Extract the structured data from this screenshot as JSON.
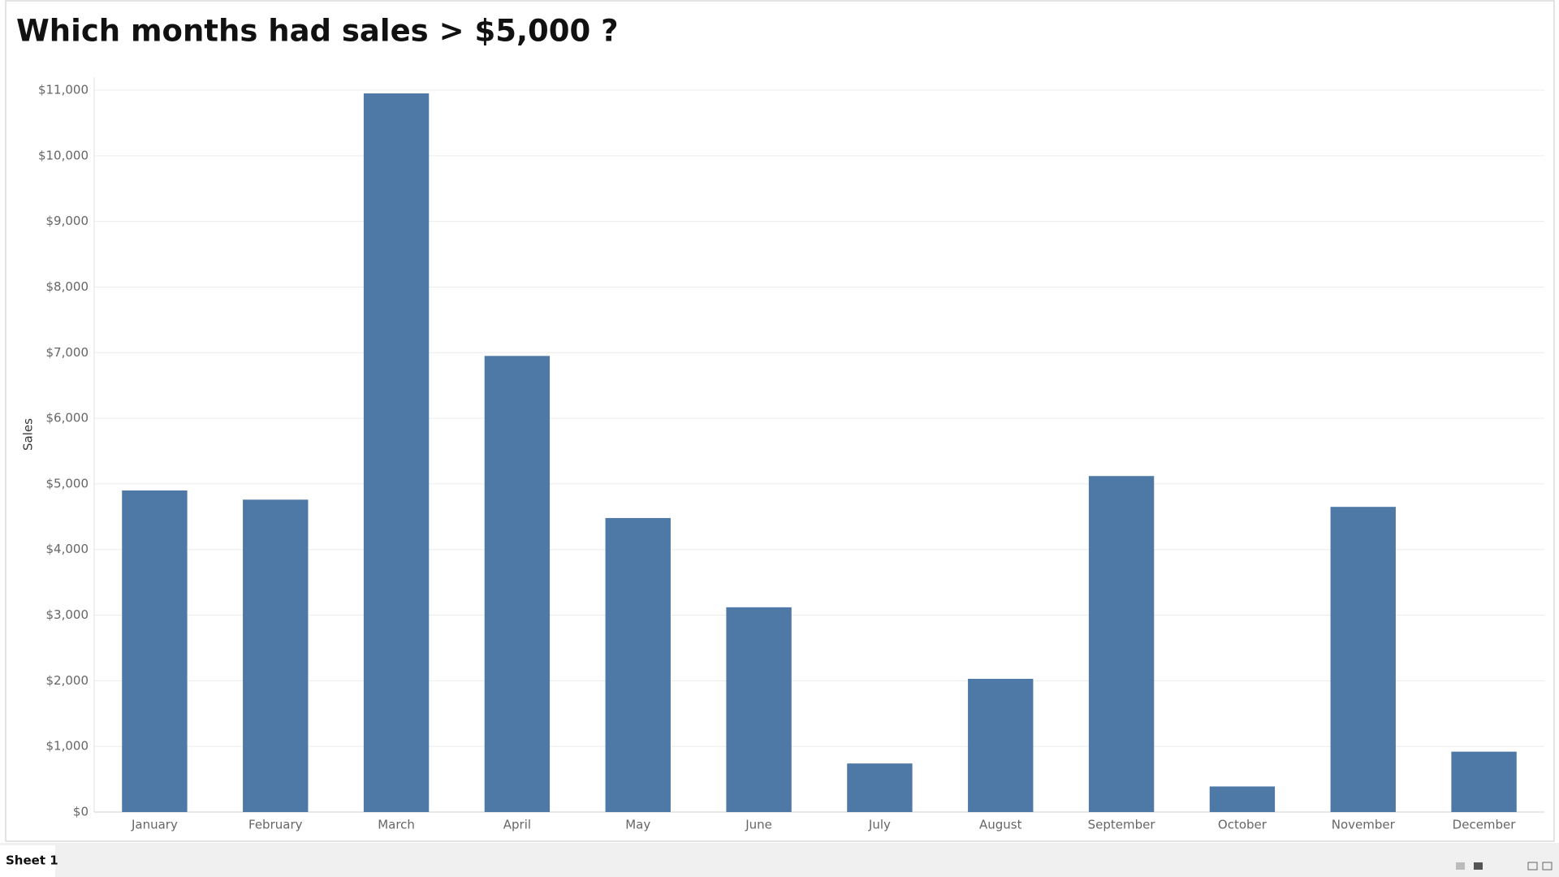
{
  "chart_data": {
    "type": "bar",
    "title": "Which months had sales > $5,000 ?",
    "y_label": "Sales",
    "categories": [
      "January",
      "February",
      "March",
      "April",
      "May",
      "June",
      "July",
      "August",
      "September",
      "October",
      "November",
      "December"
    ],
    "values": [
      4900,
      4760,
      10950,
      6950,
      4480,
      3120,
      740,
      2030,
      5120,
      390,
      4650,
      920
    ],
    "color": "#4e79a7",
    "ylim": [
      0,
      11000
    ],
    "yticks": [
      {
        "value": 0,
        "label": "$0"
      },
      {
        "value": 1000,
        "label": "$1,000"
      },
      {
        "value": 2000,
        "label": "$2,000"
      },
      {
        "value": 3000,
        "label": "$3,000"
      },
      {
        "value": 4000,
        "label": "$4,000"
      },
      {
        "value": 5000,
        "label": "$5,000"
      },
      {
        "value": 6000,
        "label": "$6,000"
      },
      {
        "value": 7000,
        "label": "$7,000"
      },
      {
        "value": 8000,
        "label": "$8,000"
      },
      {
        "value": 9000,
        "label": "$9,000"
      },
      {
        "value": 10000,
        "label": "$10,000"
      },
      {
        "value": 11000,
        "label": "$11,000"
      }
    ],
    "grid": true
  },
  "tab": "Sheet 1"
}
